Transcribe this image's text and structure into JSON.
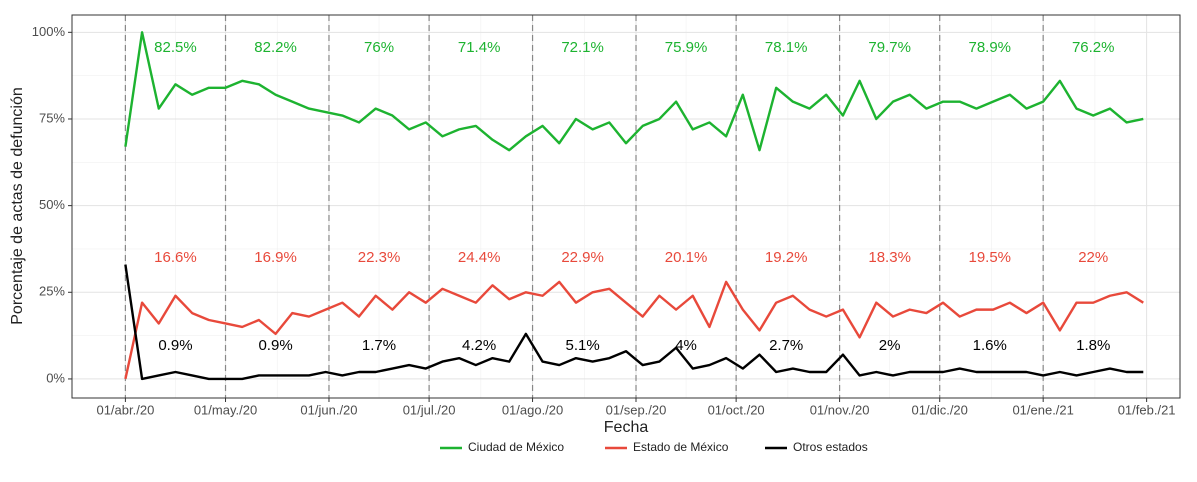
{
  "chart_data": {
    "type": "line",
    "x_label": "Fecha",
    "y_label": "Porcentaje de actas de defunción",
    "xlim": [
      "2020-03-16",
      "2021-02-11"
    ],
    "xticks": [
      {
        "value": "2020-04-01",
        "label": "01/abr./20"
      },
      {
        "value": "2020-05-01",
        "label": "01/may./20"
      },
      {
        "value": "2020-06-01",
        "label": "01/jun./20"
      },
      {
        "value": "2020-07-01",
        "label": "01/jul./20"
      },
      {
        "value": "2020-08-01",
        "label": "01/ago./20"
      },
      {
        "value": "2020-09-01",
        "label": "01/sep./20"
      },
      {
        "value": "2020-10-01",
        "label": "01/oct./20"
      },
      {
        "value": "2020-11-01",
        "label": "01/nov./20"
      },
      {
        "value": "2020-12-01",
        "label": "01/dic./20"
      },
      {
        "value": "2021-01-01",
        "label": "01/ene./21"
      },
      {
        "value": "2021-02-01",
        "label": "01/feb./21"
      }
    ],
    "ylim": [
      -5.5,
      105
    ],
    "yticks": [
      {
        "value": 0,
        "label": "0%"
      },
      {
        "value": 25,
        "label": "25%"
      },
      {
        "value": 50,
        "label": "50%"
      },
      {
        "value": 75,
        "label": "75%"
      },
      {
        "value": 100,
        "label": "100%"
      }
    ],
    "grid": true,
    "legend": "bottom",
    "x": [
      "2020-04-01",
      "2020-04-06",
      "2020-04-11",
      "2020-04-16",
      "2020-04-21",
      "2020-04-26",
      "2020-05-01",
      "2020-05-06",
      "2020-05-11",
      "2020-05-16",
      "2020-05-21",
      "2020-05-26",
      "2020-05-31",
      "2020-06-05",
      "2020-06-10",
      "2020-06-15",
      "2020-06-20",
      "2020-06-25",
      "2020-06-30",
      "2020-07-05",
      "2020-07-10",
      "2020-07-15",
      "2020-07-20",
      "2020-07-25",
      "2020-07-30",
      "2020-08-04",
      "2020-08-09",
      "2020-08-14",
      "2020-08-19",
      "2020-08-24",
      "2020-08-29",
      "2020-09-03",
      "2020-09-08",
      "2020-09-13",
      "2020-09-18",
      "2020-09-23",
      "2020-09-28",
      "2020-10-03",
      "2020-10-08",
      "2020-10-13",
      "2020-10-18",
      "2020-10-23",
      "2020-10-28",
      "2020-11-02",
      "2020-11-07",
      "2020-11-12",
      "2020-11-17",
      "2020-11-22",
      "2020-11-27",
      "2020-12-02",
      "2020-12-07",
      "2020-12-12",
      "2020-12-17",
      "2020-12-22",
      "2020-12-27",
      "2021-01-01",
      "2021-01-06",
      "2021-01-11",
      "2021-01-16",
      "2021-01-21",
      "2021-01-26",
      "2021-01-31"
    ],
    "label_x": [
      "2020-04-16",
      "2020-05-16",
      "2020-06-16",
      "2020-07-16",
      "2020-08-16",
      "2020-09-16",
      "2020-10-16",
      "2020-11-16",
      "2020-12-16",
      "2021-01-16"
    ],
    "series": [
      {
        "name": "Ciudad de México",
        "color": "#1db330",
        "values": [
          67,
          100,
          78,
          85,
          82,
          84,
          84,
          86,
          85,
          82,
          80,
          78,
          77,
          76,
          74,
          78,
          76,
          72,
          74,
          70,
          72,
          73,
          69,
          66,
          70,
          73,
          68,
          75,
          72,
          74,
          68,
          73,
          75,
          80,
          72,
          74,
          70,
          82,
          66,
          84,
          80,
          78,
          82,
          76,
          86,
          75,
          80,
          82,
          78,
          80,
          80,
          78,
          80,
          82,
          78,
          80,
          86,
          78,
          76,
          78,
          74,
          75
        ],
        "monthly_labels": [
          "82.5%",
          "82.2%",
          "76%",
          "71.4%",
          "72.1%",
          "75.9%",
          "78.1%",
          "79.7%",
          "78.9%",
          "76.2%"
        ]
      },
      {
        "name": "Estado de México",
        "color": "#e8493b",
        "values": [
          0,
          22,
          16,
          24,
          19,
          17,
          16,
          15,
          17,
          13,
          19,
          18,
          20,
          22,
          18,
          24,
          20,
          25,
          22,
          26,
          24,
          22,
          27,
          23,
          25,
          24,
          28,
          22,
          25,
          26,
          22,
          18,
          24,
          20,
          24,
          15,
          28,
          20,
          14,
          22,
          24,
          20,
          18,
          20,
          12,
          22,
          18,
          20,
          19,
          22,
          18,
          20,
          20,
          22,
          19,
          22,
          14,
          22,
          22,
          24,
          25,
          22
        ],
        "monthly_labels": [
          "16.6%",
          "16.9%",
          "22.3%",
          "24.4%",
          "22.9%",
          "20.1%",
          "19.2%",
          "18.3%",
          "19.5%",
          "22%"
        ]
      },
      {
        "name": "Otros estados",
        "color": "#000000",
        "values": [
          33,
          0,
          1,
          2,
          1,
          0,
          0,
          0,
          1,
          1,
          1,
          1,
          2,
          1,
          2,
          2,
          3,
          4,
          3,
          5,
          6,
          4,
          6,
          5,
          13,
          5,
          4,
          6,
          5,
          6,
          8,
          4,
          5,
          9,
          3,
          4,
          6,
          3,
          7,
          2,
          3,
          2,
          2,
          7,
          1,
          2,
          1,
          2,
          2,
          2,
          3,
          2,
          2,
          2,
          2,
          1,
          2,
          1,
          2,
          3,
          2,
          2
        ],
        "monthly_labels": [
          "0.9%",
          "0.9%",
          "1.7%",
          "4.2%",
          "5.1%",
          "4%",
          "2.7%",
          "2%",
          "1.6%",
          "1.8%"
        ]
      }
    ]
  }
}
